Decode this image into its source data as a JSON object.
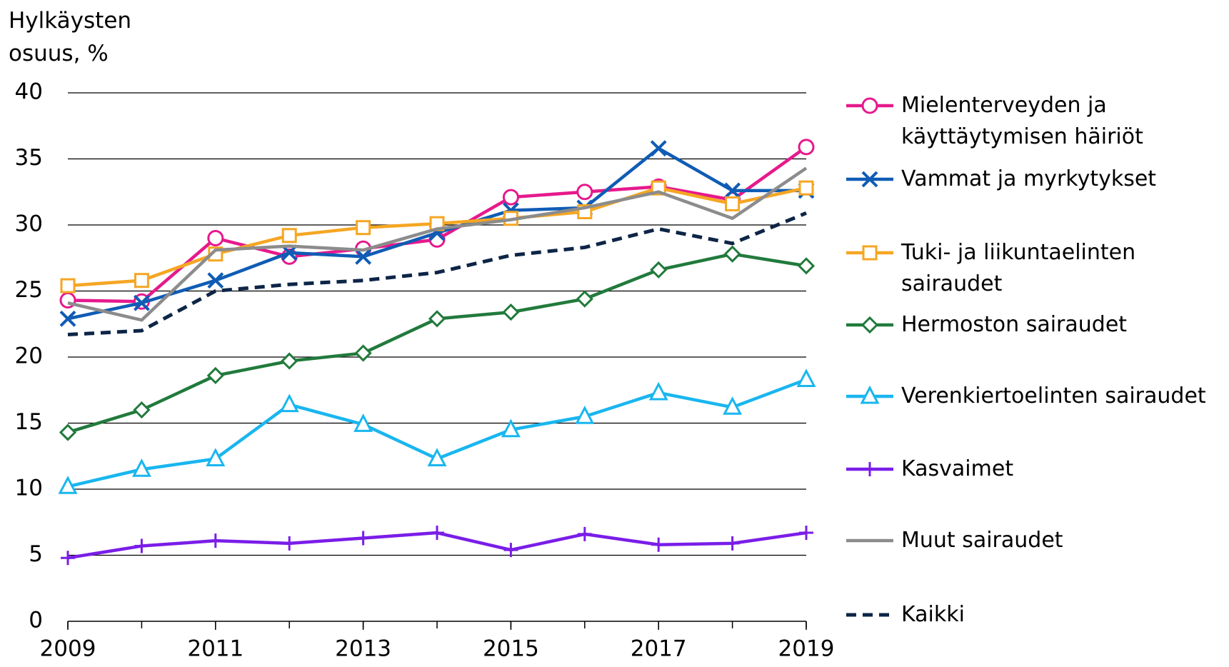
{
  "chart_data": {
    "type": "line",
    "ylabel": "Hylkäysten osuus, %",
    "x": [
      2009,
      2010,
      2011,
      2012,
      2013,
      2014,
      2015,
      2016,
      2017,
      2018,
      2019
    ],
    "xlim": [
      2009,
      2019
    ],
    "xticks": [
      2009,
      2011,
      2013,
      2015,
      2017,
      2019
    ],
    "ylim": [
      0,
      40
    ],
    "yticks": [
      0,
      5,
      10,
      15,
      20,
      25,
      30,
      35,
      40
    ],
    "grid": true,
    "legend": "right",
    "series": [
      {
        "name": "Mielenterveyden ja käyttäytymisen häiriöt",
        "color": "#e6198c",
        "marker": "circle",
        "values": [
          24.3,
          24.2,
          29.0,
          27.6,
          28.2,
          28.9,
          32.1,
          32.5,
          32.9,
          31.9,
          35.9
        ]
      },
      {
        "name": "Vammat ja myrkytykset",
        "color": "#0f5cb5",
        "marker": "x",
        "values": [
          22.9,
          24.1,
          25.8,
          27.9,
          27.6,
          29.4,
          31.1,
          31.3,
          35.8,
          32.6,
          32.6
        ]
      },
      {
        "name": "Tuki- ja liikuntaelinten sairaudet",
        "color": "#f5a623",
        "marker": "square",
        "values": [
          25.4,
          25.8,
          27.8,
          29.2,
          29.8,
          30.1,
          30.5,
          31.0,
          32.8,
          31.6,
          32.8
        ]
      },
      {
        "name": "Hermoston sairaudet",
        "color": "#217a3c",
        "marker": "diamond",
        "values": [
          14.3,
          16.0,
          18.6,
          19.7,
          20.3,
          22.9,
          23.4,
          24.4,
          26.6,
          27.8,
          26.9
        ]
      },
      {
        "name": "Verenkiertoelinten sairaudet",
        "color": "#19b6ef",
        "marker": "triangle",
        "values": [
          10.2,
          11.5,
          12.3,
          16.4,
          14.9,
          12.3,
          14.5,
          15.5,
          17.3,
          16.2,
          18.3
        ]
      },
      {
        "name": "Kasvaimet",
        "color": "#7a1de8",
        "marker": "plus",
        "values": [
          4.8,
          5.7,
          6.1,
          5.9,
          6.3,
          6.7,
          5.4,
          6.6,
          5.8,
          5.9,
          6.7
        ]
      },
      {
        "name": "Muut sairaudet",
        "color": "#8c8c8c",
        "values": [
          24.1,
          22.8,
          28.1,
          28.4,
          28.1,
          29.7,
          30.4,
          31.3,
          32.5,
          30.5,
          34.3
        ]
      },
      {
        "name": "Kaikki",
        "color": "#0d2546",
        "dash": true,
        "values": [
          21.7,
          22.0,
          25.0,
          25.5,
          25.8,
          26.4,
          27.7,
          28.3,
          29.7,
          28.6,
          30.9
        ]
      }
    ]
  }
}
